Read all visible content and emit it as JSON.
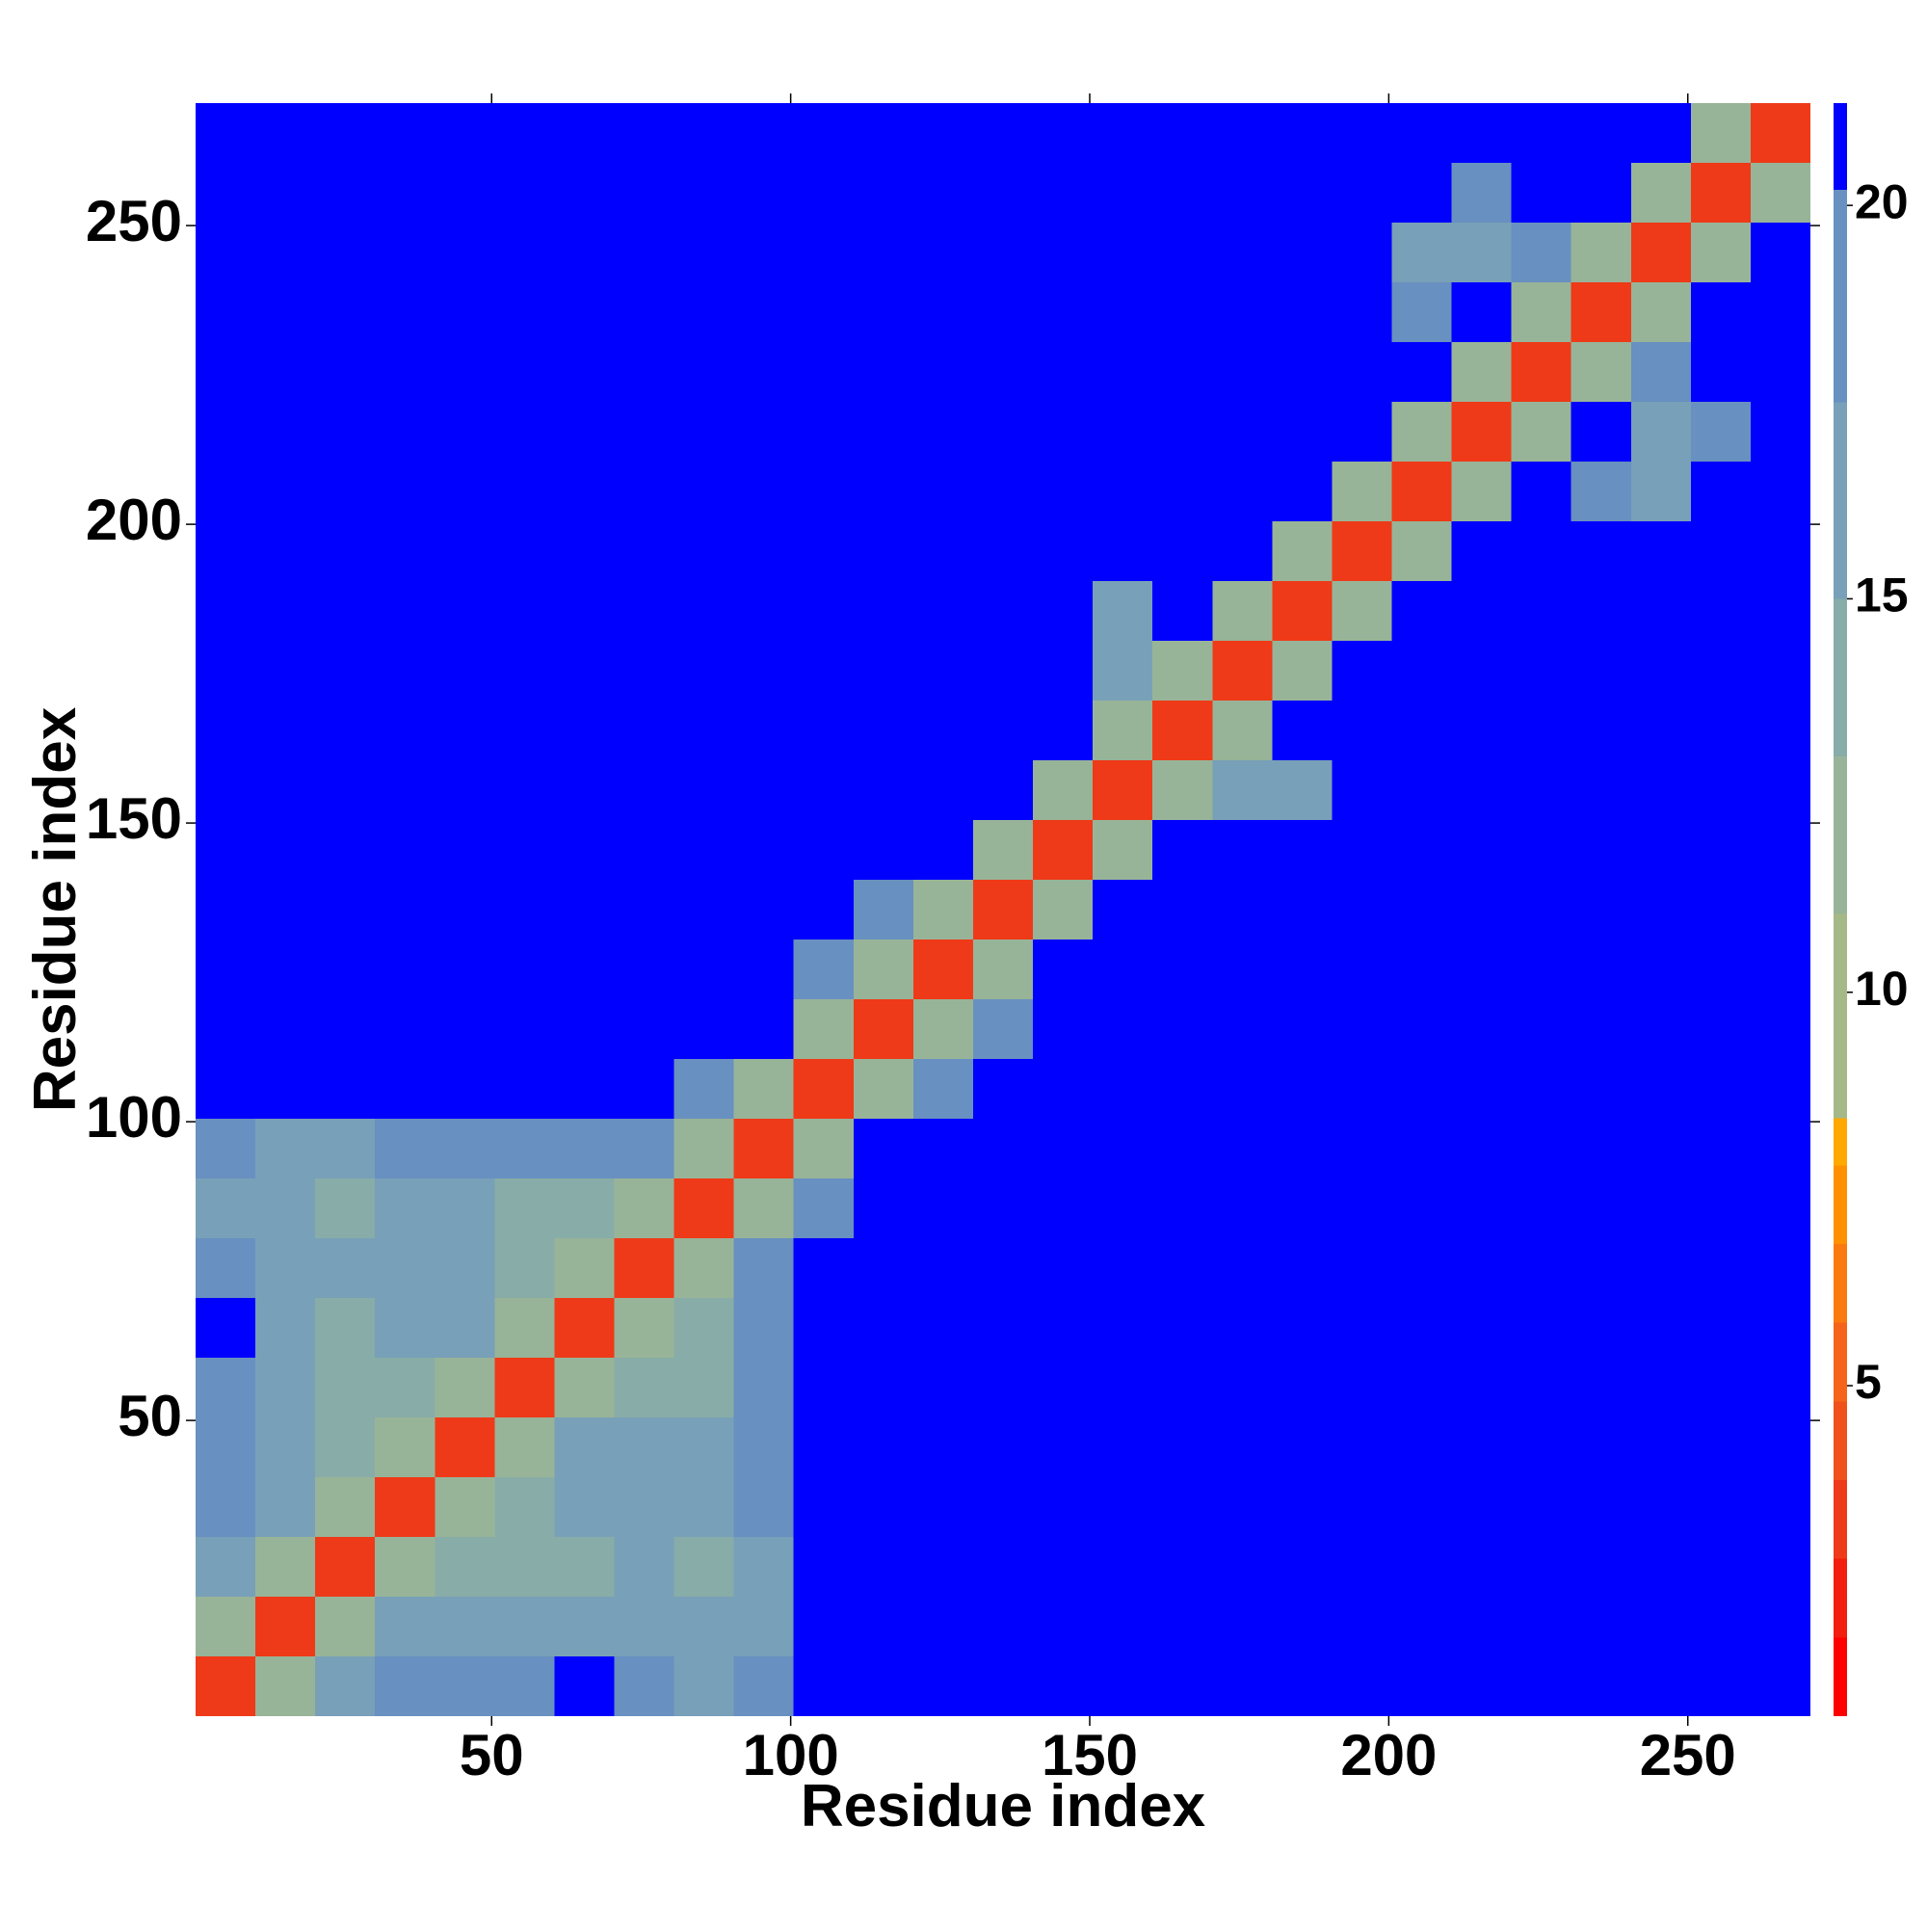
{
  "chart_data": {
    "type": "heatmap",
    "xlabel": "Residue index",
    "ylabel": "Residue index",
    "x_bins": [
      0.5,
      10.5,
      20.5,
      30.5,
      40.5,
      50.5,
      60.5,
      70.5,
      80.5,
      90.5,
      100.5,
      110.5,
      120.5,
      130.5,
      140.5,
      150.5,
      160.5,
      170.5,
      180.5,
      190.5,
      200.5,
      210.5,
      220.5,
      230.5,
      240.5,
      250.5,
      260.5,
      270.5
    ],
    "y_bins": [
      0.5,
      10.5,
      20.5,
      30.5,
      40.5,
      50.5,
      60.5,
      70.5,
      80.5,
      90.5,
      100.5,
      110.5,
      120.5,
      130.5,
      140.5,
      150.5,
      160.5,
      170.5,
      180.5,
      190.5,
      200.5,
      210.5,
      220.5,
      230.5,
      240.5,
      250.5,
      260.5,
      270.5
    ],
    "xlim": [
      0.5,
      270.5
    ],
    "ylim": [
      0.5,
      270.5
    ],
    "xticks": [
      50,
      100,
      150,
      200,
      250
    ],
    "yticks": [
      50,
      100,
      150,
      200,
      250
    ],
    "z": [
      [
        3,
        12,
        15,
        18,
        20,
        19,
        21,
        19,
        16,
        18,
        21,
        21,
        21,
        21,
        21,
        21,
        21,
        21,
        21,
        21,
        21,
        21,
        21,
        21,
        21,
        21,
        21
      ],
      [
        12,
        3,
        12,
        16,
        16,
        15,
        17,
        17,
        15,
        17,
        21,
        21,
        21,
        21,
        21,
        21,
        21,
        21,
        21,
        21,
        21,
        21,
        21,
        21,
        21,
        21,
        21
      ],
      [
        15,
        12,
        3,
        12,
        13,
        14,
        14,
        15,
        14,
        16,
        21,
        21,
        21,
        21,
        21,
        21,
        21,
        21,
        21,
        21,
        21,
        21,
        21,
        21,
        21,
        21,
        21
      ],
      [
        18,
        16,
        12,
        3,
        12,
        14,
        16,
        15,
        16,
        19,
        21,
        21,
        21,
        21,
        21,
        21,
        21,
        21,
        21,
        21,
        21,
        21,
        21,
        21,
        21,
        21,
        21
      ],
      [
        20,
        16,
        13,
        12,
        3,
        12,
        17,
        17,
        17,
        20,
        21,
        21,
        21,
        21,
        21,
        21,
        21,
        21,
        21,
        21,
        21,
        21,
        21,
        21,
        21,
        21,
        21
      ],
      [
        19,
        15,
        14,
        14,
        12,
        3,
        12,
        14,
        14,
        18,
        21,
        21,
        21,
        21,
        21,
        21,
        21,
        21,
        21,
        21,
        21,
        21,
        21,
        21,
        21,
        21,
        21
      ],
      [
        21,
        17,
        14,
        16,
        17,
        12,
        3,
        12,
        13,
        18,
        21,
        21,
        21,
        21,
        21,
        21,
        21,
        21,
        21,
        21,
        21,
        21,
        21,
        21,
        21,
        21,
        21
      ],
      [
        19,
        17,
        15,
        15,
        17,
        14,
        12,
        3,
        12,
        18,
        21,
        21,
        21,
        21,
        21,
        21,
        21,
        21,
        21,
        21,
        21,
        21,
        21,
        21,
        21,
        21,
        21
      ],
      [
        16,
        15,
        14,
        16,
        17,
        14,
        13,
        12,
        3,
        12,
        19,
        21,
        21,
        21,
        21,
        21,
        21,
        21,
        21,
        21,
        21,
        21,
        21,
        21,
        21,
        21,
        21
      ],
      [
        18,
        17,
        16,
        19,
        20,
        18,
        18,
        18,
        12,
        3,
        12,
        21,
        21,
        21,
        21,
        21,
        21,
        21,
        21,
        21,
        21,
        21,
        21,
        21,
        21,
        21,
        21
      ],
      [
        21,
        21,
        21,
        21,
        21,
        21,
        21,
        21,
        19,
        12,
        3,
        12,
        19,
        21,
        21,
        21,
        21,
        21,
        21,
        21,
        21,
        21,
        21,
        21,
        21,
        21,
        21
      ],
      [
        21,
        21,
        21,
        21,
        21,
        21,
        21,
        21,
        21,
        21,
        12,
        3,
        12,
        20,
        21,
        21,
        21,
        21,
        21,
        21,
        21,
        21,
        21,
        21,
        21,
        21,
        21
      ],
      [
        21,
        21,
        21,
        21,
        21,
        21,
        21,
        21,
        21,
        21,
        19,
        12,
        3,
        12,
        21,
        21,
        21,
        21,
        21,
        21,
        21,
        21,
        21,
        21,
        21,
        21,
        21
      ],
      [
        21,
        21,
        21,
        21,
        21,
        21,
        21,
        21,
        21,
        21,
        21,
        20,
        12,
        3,
        12,
        21,
        21,
        21,
        21,
        21,
        21,
        21,
        21,
        21,
        21,
        21,
        21
      ],
      [
        21,
        21,
        21,
        21,
        21,
        21,
        21,
        21,
        21,
        21,
        21,
        21,
        21,
        12,
        3,
        12,
        21,
        21,
        21,
        21,
        21,
        21,
        21,
        21,
        21,
        21,
        21
      ],
      [
        21,
        21,
        21,
        21,
        21,
        21,
        21,
        21,
        21,
        21,
        21,
        21,
        21,
        21,
        12,
        3,
        12,
        15,
        17,
        21,
        21,
        21,
        21,
        21,
        21,
        21,
        21
      ],
      [
        21,
        21,
        21,
        21,
        21,
        21,
        21,
        21,
        21,
        21,
        21,
        21,
        21,
        21,
        21,
        12,
        3,
        12,
        21,
        21,
        21,
        21,
        21,
        21,
        21,
        21,
        21
      ],
      [
        21,
        21,
        21,
        21,
        21,
        21,
        21,
        21,
        21,
        21,
        21,
        21,
        21,
        21,
        21,
        15,
        12,
        3,
        12,
        21,
        21,
        21,
        21,
        21,
        21,
        21,
        21
      ],
      [
        21,
        21,
        21,
        21,
        21,
        21,
        21,
        21,
        21,
        21,
        21,
        21,
        21,
        21,
        21,
        17,
        21,
        12,
        3,
        12,
        21,
        21,
        21,
        21,
        21,
        21,
        21
      ],
      [
        21,
        21,
        21,
        21,
        21,
        21,
        21,
        21,
        21,
        21,
        21,
        21,
        21,
        21,
        21,
        21,
        21,
        21,
        12,
        3,
        12,
        21,
        21,
        21,
        21,
        21,
        21
      ],
      [
        21,
        21,
        21,
        21,
        21,
        21,
        21,
        21,
        21,
        21,
        21,
        21,
        21,
        21,
        21,
        21,
        21,
        21,
        21,
        12,
        3,
        12,
        21,
        19,
        17,
        21,
        21
      ],
      [
        21,
        21,
        21,
        21,
        21,
        21,
        21,
        21,
        21,
        21,
        21,
        21,
        21,
        21,
        21,
        21,
        21,
        21,
        21,
        21,
        12,
        3,
        12,
        21,
        15,
        19,
        21
      ],
      [
        21,
        21,
        21,
        21,
        21,
        21,
        21,
        21,
        21,
        21,
        21,
        21,
        21,
        21,
        21,
        21,
        21,
        21,
        21,
        21,
        21,
        12,
        3,
        12,
        19,
        21,
        21
      ],
      [
        21,
        21,
        21,
        21,
        21,
        21,
        21,
        21,
        21,
        21,
        21,
        21,
        21,
        21,
        21,
        21,
        21,
        21,
        21,
        21,
        19,
        21,
        12,
        3,
        12,
        21,
        21
      ],
      [
        21,
        21,
        21,
        21,
        21,
        21,
        21,
        21,
        21,
        21,
        21,
        21,
        21,
        21,
        21,
        21,
        21,
        21,
        21,
        21,
        17,
        15,
        19,
        12,
        3,
        12,
        21
      ],
      [
        21,
        21,
        21,
        21,
        21,
        21,
        21,
        21,
        21,
        21,
        21,
        21,
        21,
        21,
        21,
        21,
        21,
        21,
        21,
        21,
        21,
        19,
        21,
        21,
        12,
        3,
        12
      ],
      [
        21,
        21,
        21,
        21,
        21,
        21,
        21,
        21,
        21,
        21,
        21,
        21,
        21,
        21,
        21,
        21,
        21,
        21,
        21,
        21,
        21,
        21,
        21,
        21,
        21,
        12,
        3
      ]
    ],
    "colorbar": {
      "lim": [
        0.8,
        21.3
      ],
      "bounds": [
        0.8,
        1.8,
        2.8,
        3.8,
        4.8,
        5.8,
        6.8,
        7.8,
        8.4,
        11,
        13,
        15,
        17.5,
        20.2,
        21.3
      ],
      "colors": [
        "#ff0000",
        "#f21e0e",
        "#ee3a18",
        "#f0501a",
        "#f5641a",
        "#fa7a10",
        "#ff9000",
        "#ffa800",
        "#a4b888",
        "#98b498",
        "#88aca8",
        "#78a0b8",
        "#6890c0",
        "#0000ff"
      ],
      "ticks": [
        5,
        10,
        15,
        20
      ]
    }
  }
}
